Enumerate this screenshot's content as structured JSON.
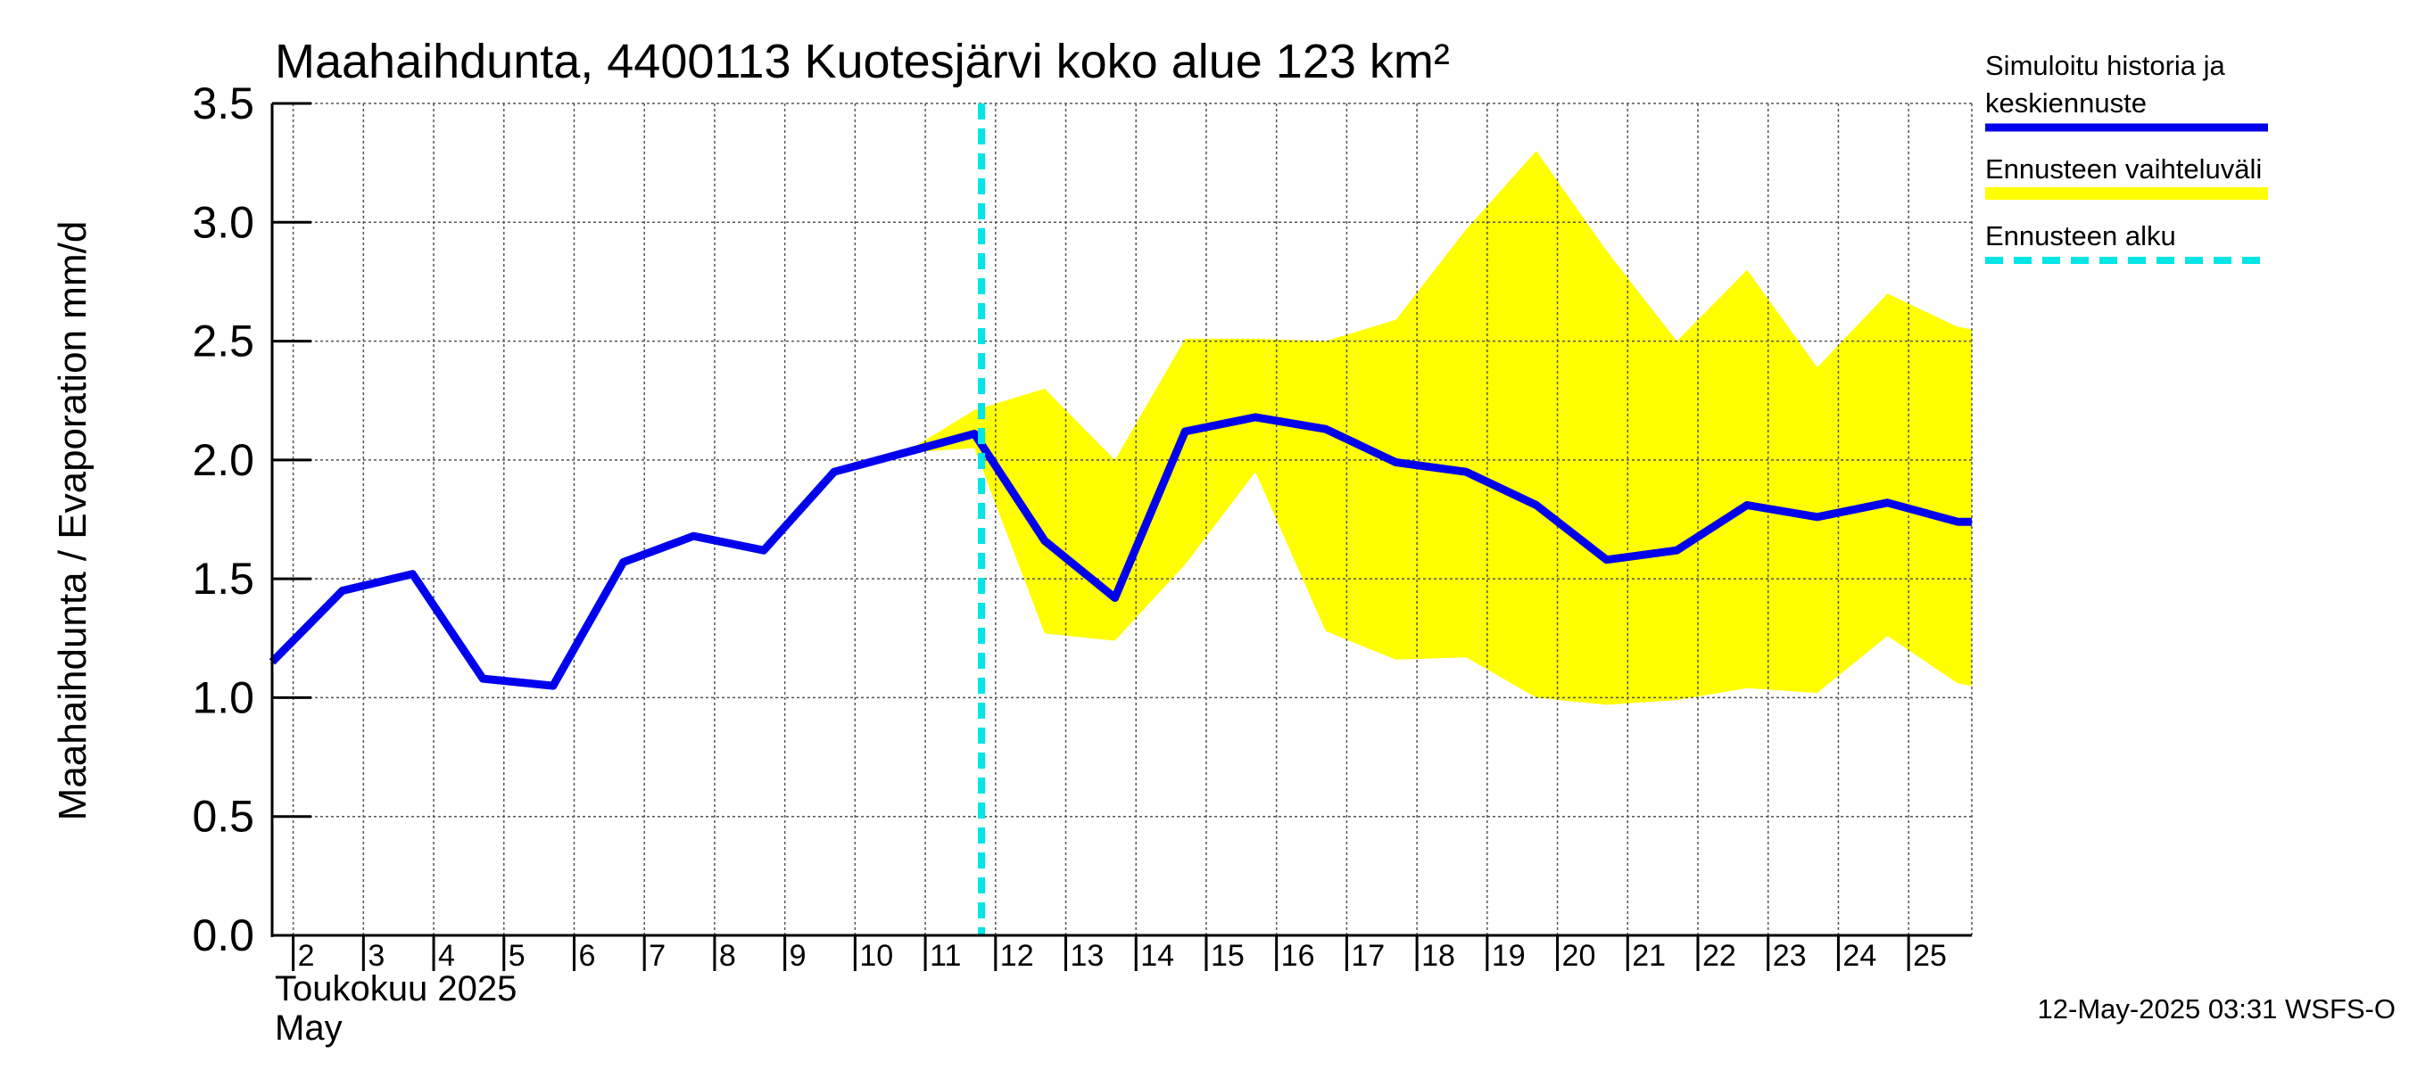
{
  "title": "Maahaihdunta, 4400113 Kuotesjärvi koko alue 123 km²",
  "timestamp": "12-May-2025 03:31 WSFS-O",
  "colors": {
    "mean": "#0000ee",
    "range": "#ffff00",
    "forecast_start": "#00e5e5",
    "grid": "#555555",
    "axis": "#000000"
  },
  "legend": {
    "mean_line1": "Simuloitu historia ja",
    "mean_line2": "keskiennuste",
    "range": "Ennusteen vaihteluväli",
    "forecast_start": "Ennusteen alku"
  },
  "chart_data": {
    "type": "line",
    "title": "Maahaihdunta, 4400113 Kuotesjärvi koko alue 123 km²",
    "ylabel": "Maahaihdunta / Evaporation   mm/d",
    "xlabel_line1": "Toukokuu  2025",
    "xlabel_line2": "May",
    "ylim": [
      0,
      3.5
    ],
    "yticks": [
      "0.0",
      "0.5",
      "1.0",
      "1.5",
      "2.0",
      "2.5",
      "3.0",
      "3.5"
    ],
    "x_start_day": 1.7,
    "x_end_day": 25.9,
    "x_ticks": [
      "2",
      "3",
      "4",
      "5",
      "6",
      "7",
      "8",
      "9",
      "10",
      "11",
      "12",
      "13",
      "14",
      "15",
      "16",
      "17",
      "18",
      "19",
      "20",
      "21",
      "22",
      "23",
      "24",
      "25"
    ],
    "forecast_start_day": 11.8,
    "series": [
      {
        "name": "Simuloitu historia ja keskiennuste",
        "points": [
          [
            1.7,
            1.15
          ],
          [
            2.7,
            1.45
          ],
          [
            3.7,
            1.52
          ],
          [
            4.7,
            1.08
          ],
          [
            5.7,
            1.05
          ],
          [
            6.7,
            1.57
          ],
          [
            7.7,
            1.68
          ],
          [
            8.7,
            1.62
          ],
          [
            9.7,
            1.95
          ],
          [
            10.7,
            2.03
          ],
          [
            11.7,
            2.11
          ],
          [
            12.7,
            1.66
          ],
          [
            13.7,
            1.42
          ],
          [
            14.7,
            2.12
          ],
          [
            15.7,
            2.18
          ],
          [
            16.7,
            2.13
          ],
          [
            17.7,
            1.99
          ],
          [
            18.7,
            1.95
          ],
          [
            19.7,
            1.81
          ],
          [
            20.7,
            1.58
          ],
          [
            21.7,
            1.62
          ],
          [
            22.7,
            1.81
          ],
          [
            23.7,
            1.76
          ],
          [
            24.7,
            1.82
          ],
          [
            25.7,
            1.74
          ],
          [
            25.9,
            1.74
          ]
        ]
      },
      {
        "name": "Ennusteen vaihteluväli",
        "upper": [
          [
            10.7,
            2.03
          ],
          [
            11.7,
            2.21
          ],
          [
            12.7,
            2.3
          ],
          [
            13.7,
            2.0
          ],
          [
            14.7,
            2.51
          ],
          [
            15.7,
            2.51
          ],
          [
            16.7,
            2.5
          ],
          [
            17.7,
            2.59
          ],
          [
            18.7,
            2.97
          ],
          [
            19.7,
            3.3
          ],
          [
            20.7,
            2.88
          ],
          [
            21.7,
            2.5
          ],
          [
            22.7,
            2.8
          ],
          [
            23.7,
            2.39
          ],
          [
            24.7,
            2.7
          ],
          [
            25.7,
            2.56
          ],
          [
            25.9,
            2.55
          ]
        ],
        "lower": [
          [
            10.7,
            2.03
          ],
          [
            11.7,
            2.05
          ],
          [
            12.7,
            1.27
          ],
          [
            13.7,
            1.24
          ],
          [
            14.7,
            1.56
          ],
          [
            15.7,
            1.95
          ],
          [
            16.7,
            1.28
          ],
          [
            17.7,
            1.16
          ],
          [
            18.7,
            1.17
          ],
          [
            19.7,
            1.0
          ],
          [
            20.7,
            0.97
          ],
          [
            21.7,
            0.99
          ],
          [
            22.7,
            1.04
          ],
          [
            23.7,
            1.02
          ],
          [
            24.7,
            1.26
          ],
          [
            25.7,
            1.06
          ],
          [
            25.9,
            1.05
          ]
        ]
      }
    ]
  }
}
